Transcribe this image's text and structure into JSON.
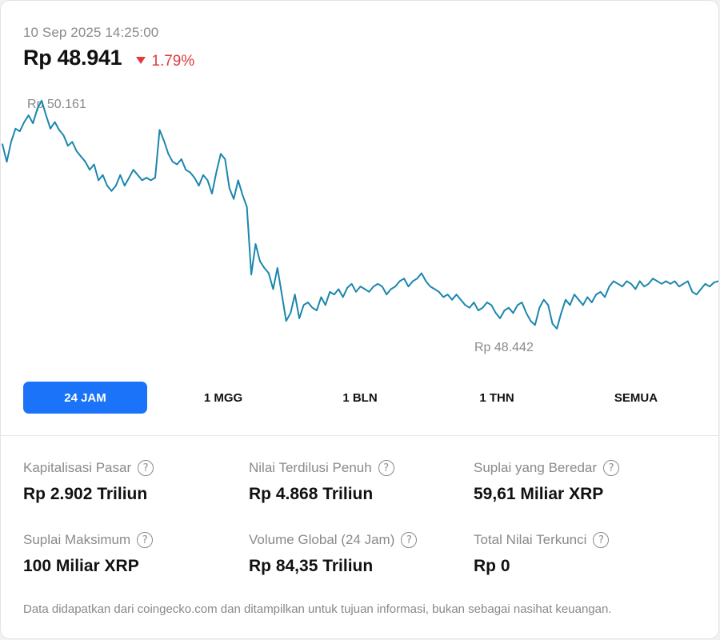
{
  "header": {
    "timestamp": "10 Sep 2025 14:25:00",
    "price": "Rp 48.941",
    "change": "1.79%"
  },
  "colors": {
    "line": "#1b86ad",
    "accent": "#1a73f8",
    "negative": "#e0393e",
    "muted": "#8a8a8a"
  },
  "chart_data": {
    "type": "line",
    "title": "",
    "xlabel": "",
    "ylabel": "",
    "grid": false,
    "annotations": {
      "high_label": "Rp 50.161",
      "low_label": "Rp 48.442"
    },
    "high": 50161,
    "low": 48442,
    "ylim": [
      48200,
      50250
    ],
    "series": [
      {
        "values": [
          49832,
          49700,
          49850,
          49950,
          49930,
          50000,
          50050,
          49990,
          50100,
          50161,
          50050,
          49950,
          50000,
          49940,
          49900,
          49820,
          49850,
          49780,
          49740,
          49700,
          49640,
          49680,
          49560,
          49600,
          49520,
          49480,
          49520,
          49600,
          49520,
          49580,
          49640,
          49600,
          49560,
          49580,
          49560,
          49580,
          49940,
          49860,
          49760,
          49700,
          49680,
          49720,
          49640,
          49620,
          49580,
          49520,
          49600,
          49560,
          49460,
          49620,
          49760,
          49720,
          49500,
          49420,
          49560,
          49450,
          49360,
          48850,
          49080,
          48950,
          48900,
          48860,
          48740,
          48900,
          48700,
          48500,
          48560,
          48700,
          48520,
          48620,
          48640,
          48600,
          48580,
          48680,
          48620,
          48720,
          48700,
          48740,
          48680,
          48750,
          48780,
          48720,
          48760,
          48740,
          48720,
          48760,
          48780,
          48760,
          48700,
          48740,
          48760,
          48800,
          48820,
          48760,
          48800,
          48820,
          48860,
          48800,
          48760,
          48740,
          48720,
          48680,
          48700,
          48660,
          48700,
          48660,
          48620,
          48600,
          48640,
          48580,
          48600,
          48640,
          48620,
          48560,
          48520,
          48580,
          48600,
          48560,
          48620,
          48640,
          48560,
          48500,
          48470,
          48600,
          48660,
          48620,
          48480,
          48442,
          48560,
          48660,
          48620,
          48700,
          48660,
          48620,
          48680,
          48640,
          48700,
          48720,
          48680,
          48760,
          48800,
          48780,
          48760,
          48800,
          48780,
          48740,
          48800,
          48760,
          48780,
          48820,
          48800,
          48780,
          48800,
          48780,
          48800,
          48760,
          48780,
          48800,
          48720,
          48700,
          48740,
          48780,
          48760,
          48790,
          48800
        ]
      }
    ]
  },
  "tabs": [
    {
      "label": "24 JAM",
      "active": true
    },
    {
      "label": "1 MGG",
      "active": false
    },
    {
      "label": "1 BLN",
      "active": false
    },
    {
      "label": "1 THN",
      "active": false
    },
    {
      "label": "SEMUA",
      "active": false
    }
  ],
  "stats": [
    {
      "label": "Kapitalisasi Pasar",
      "value": "Rp 2.902 Triliun"
    },
    {
      "label": "Nilai Terdilusi Penuh",
      "value": "Rp 4.868 Triliun"
    },
    {
      "label": "Suplai yang Beredar",
      "value": "59,61 Miliar XRP"
    },
    {
      "label": "Suplai Maksimum",
      "value": "100 Miliar XRP"
    },
    {
      "label": "Volume Global (24 Jam)",
      "value": "Rp 84,35 Triliun"
    },
    {
      "label": "Total Nilai Terkunci",
      "value": "Rp 0"
    }
  ],
  "info_icon": "question-circle-icon",
  "footnote": "Data didapatkan dari coingecko.com dan ditampilkan untuk tujuan informasi, bukan sebagai nasihat keuangan."
}
